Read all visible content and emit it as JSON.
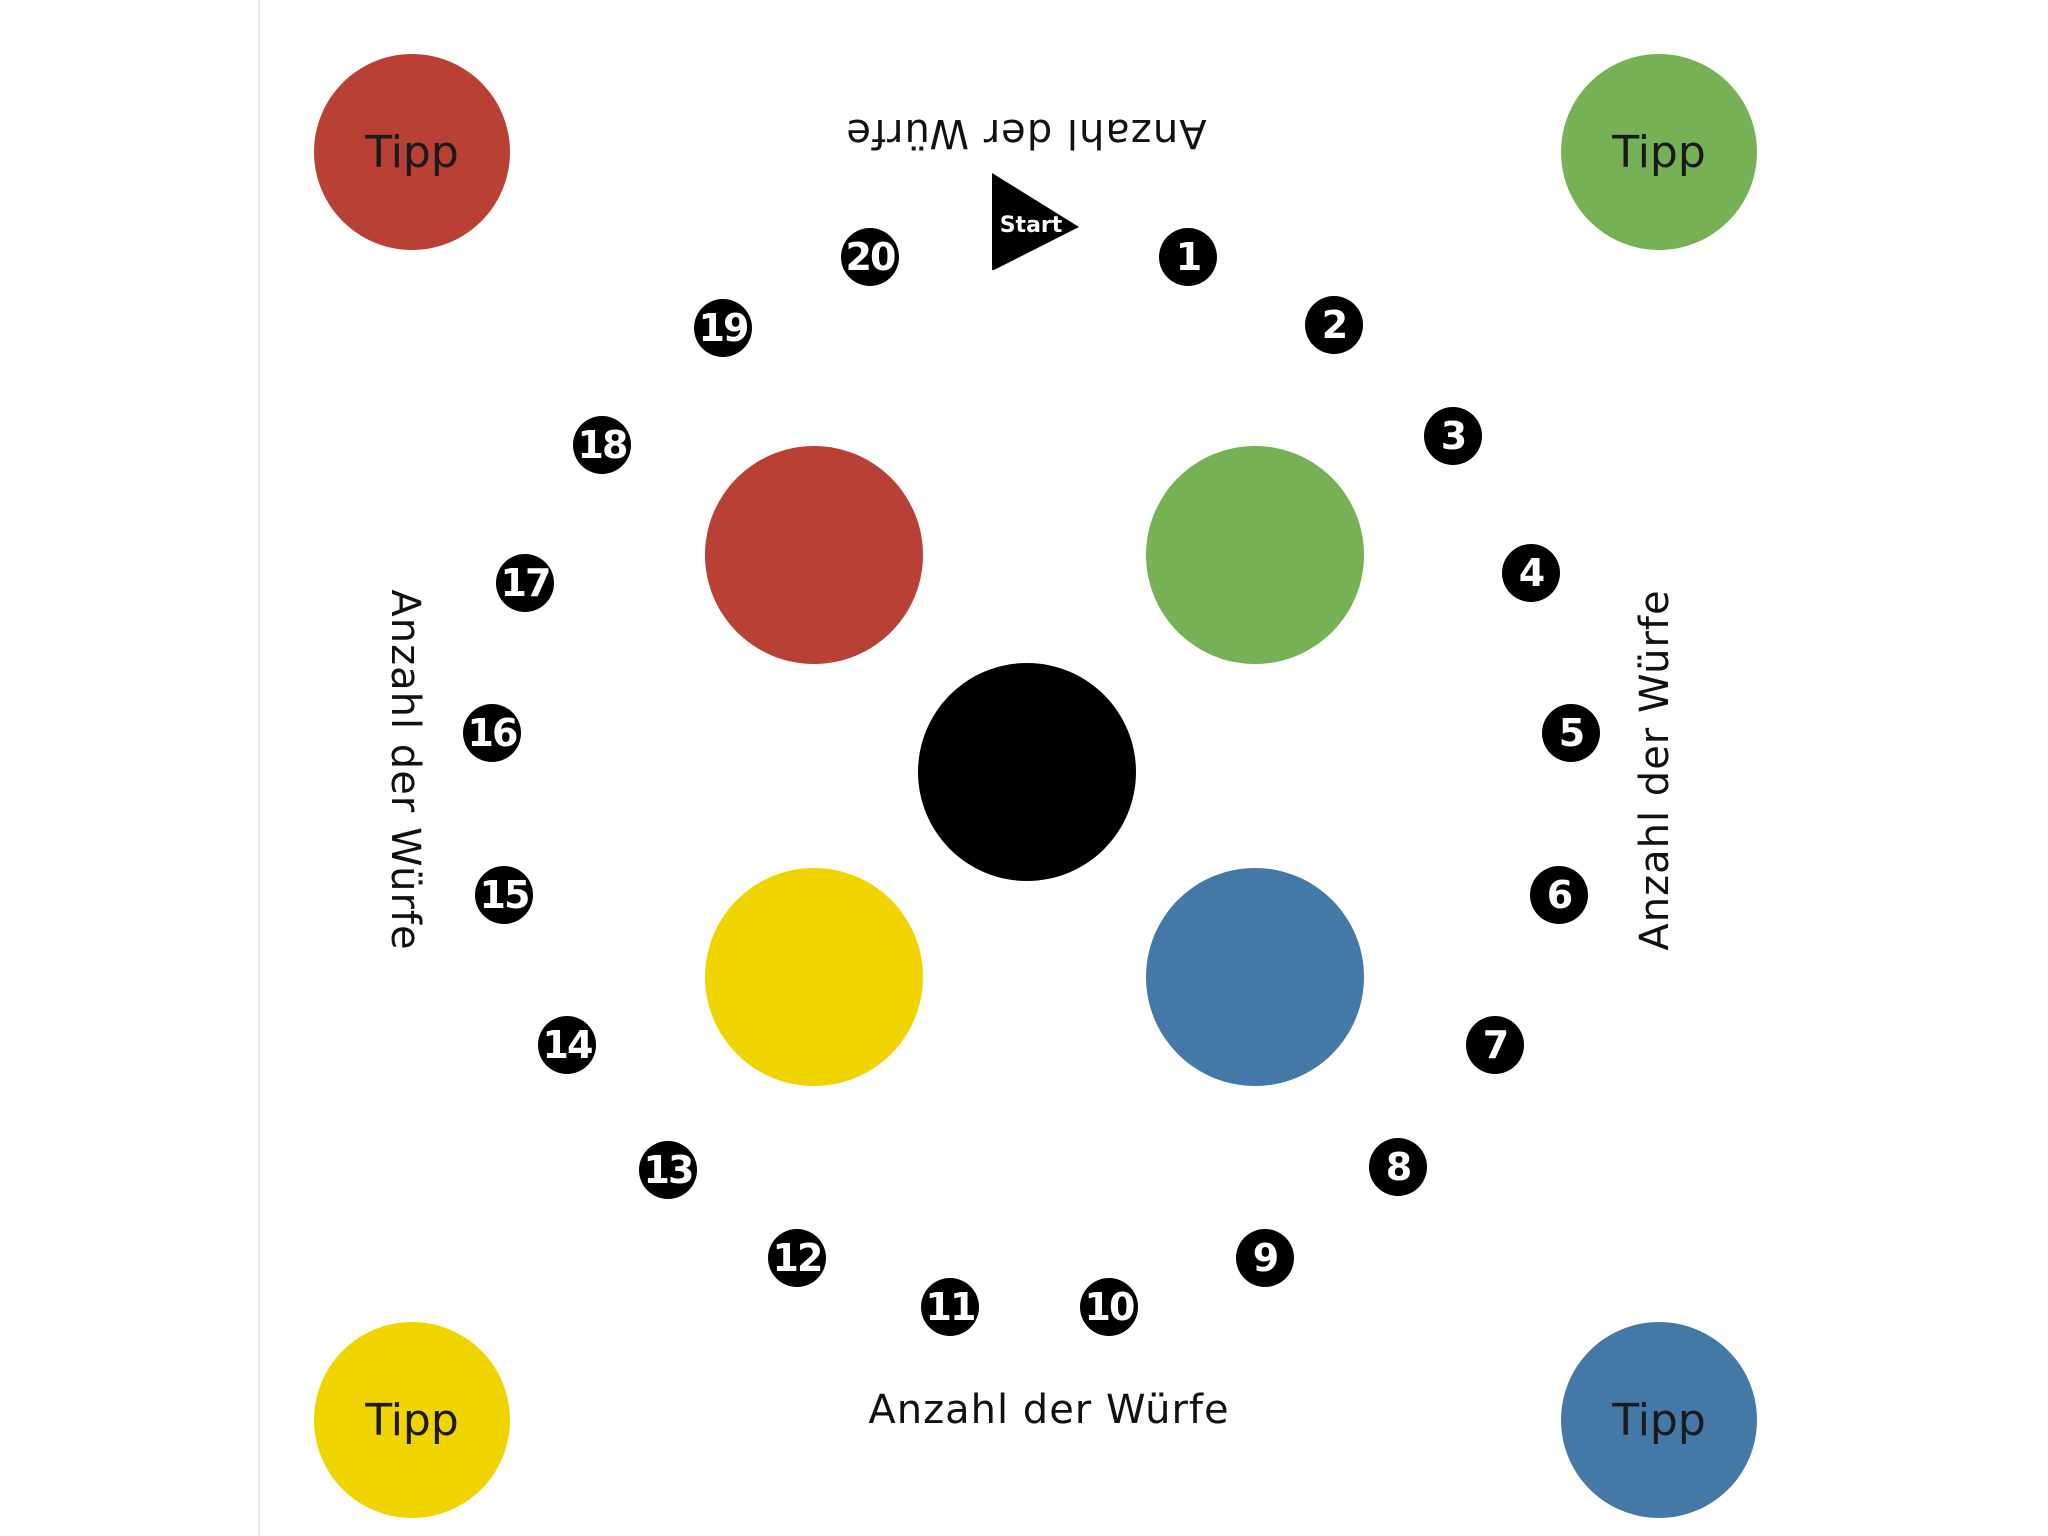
{
  "corners": {
    "top_left": {
      "label": "Tipp",
      "color": "#b94034"
    },
    "top_right": {
      "label": "Tipp",
      "color": "#76b155"
    },
    "bottom_left": {
      "label": "Tipp",
      "color": "#f0d400"
    },
    "bottom_right": {
      "label": "Tipp",
      "color": "#4479a7"
    }
  },
  "center_circles": {
    "red": "#b94034",
    "green": "#76b155",
    "yellow": "#f0d400",
    "blue": "#4479a7",
    "black": "#000000"
  },
  "start_label": "Start",
  "labels": {
    "top": "Anzahl der Würfe",
    "bottom": "Anzahl der Würfe",
    "left": "Anzahl der Würfe",
    "right": "Anzahl der Würfe"
  },
  "track_numbers": [
    "1",
    "2",
    "3",
    "4",
    "5",
    "6",
    "7",
    "8",
    "9",
    "10",
    "11",
    "12",
    "13",
    "14",
    "15",
    "16",
    "17",
    "18",
    "19",
    "20"
  ]
}
